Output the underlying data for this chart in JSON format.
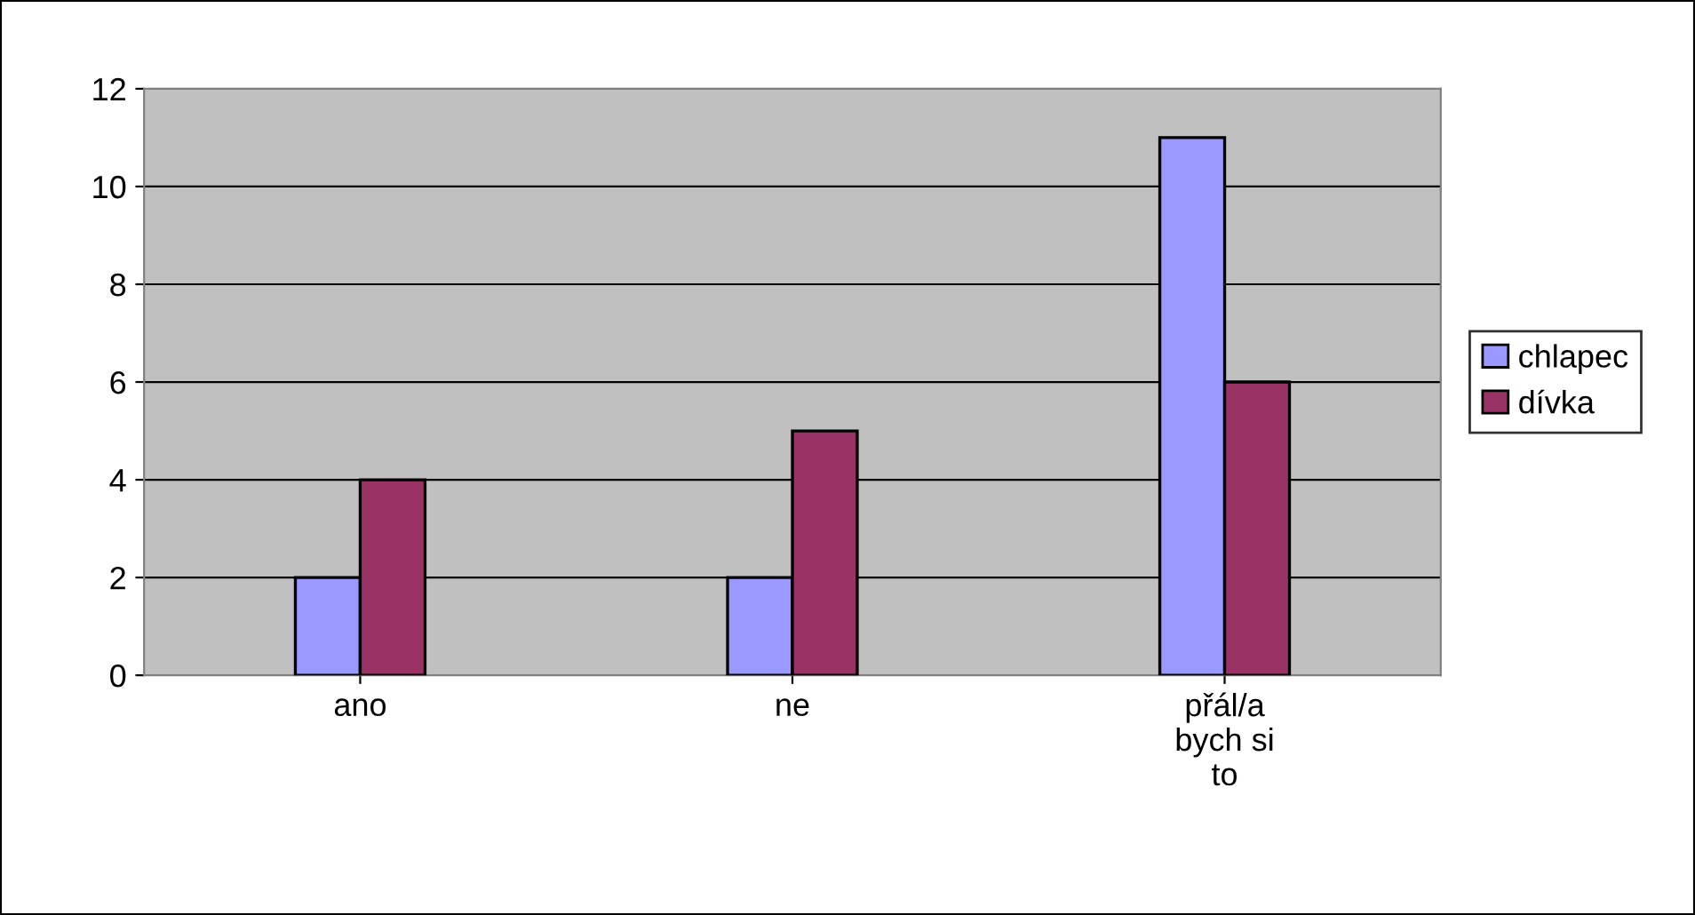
{
  "chart_data": {
    "type": "bar",
    "categories": [
      "ano",
      "ne",
      "přál/a\nbych si\nto"
    ],
    "series": [
      {
        "name": "chlapec",
        "color": "#9999ff",
        "values": [
          2,
          2,
          11
        ]
      },
      {
        "name": "dívka",
        "color": "#993366",
        "values": [
          4,
          5,
          6
        ]
      }
    ],
    "ylim": [
      0,
      12
    ],
    "yticks": [
      0,
      2,
      4,
      6,
      8,
      10,
      12
    ],
    "grid": "y",
    "legend": "right"
  }
}
